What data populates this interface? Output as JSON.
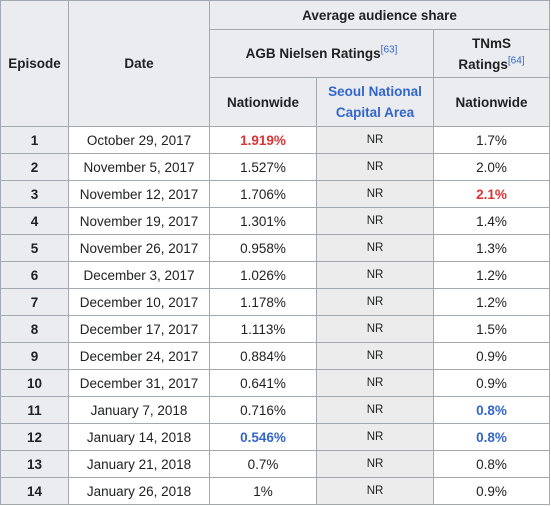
{
  "headers": {
    "episode": "Episode",
    "date": "Date",
    "average_share": "Average audience share",
    "agb": "AGB Nielsen Ratings",
    "agb_ref": "[63]",
    "tnms": "TNmS Ratings",
    "tnms_ref": "[64]",
    "nationwide_agb": "Nationwide",
    "seoul": "Seoul National Capital Area",
    "nationwide_tnms": "Nationwide"
  },
  "rows": [
    {
      "episode": "1",
      "date": "October 29, 2017",
      "agb_nationwide": "1.919%",
      "seoul": "NR",
      "tnms": "1.7%"
    },
    {
      "episode": "2",
      "date": "November 5, 2017",
      "agb_nationwide": "1.527%",
      "seoul": "NR",
      "tnms": "2.0%"
    },
    {
      "episode": "3",
      "date": "November 12, 2017",
      "agb_nationwide": "1.706%",
      "seoul": "NR",
      "tnms": "2.1%"
    },
    {
      "episode": "4",
      "date": "November 19, 2017",
      "agb_nationwide": "1.301%",
      "seoul": "NR",
      "tnms": "1.4%"
    },
    {
      "episode": "5",
      "date": "November 26, 2017",
      "agb_nationwide": "0.958%",
      "seoul": "NR",
      "tnms": "1.3%"
    },
    {
      "episode": "6",
      "date": "December 3, 2017",
      "agb_nationwide": "1.026%",
      "seoul": "NR",
      "tnms": "1.2%"
    },
    {
      "episode": "7",
      "date": "December 10, 2017",
      "agb_nationwide": "1.178%",
      "seoul": "NR",
      "tnms": "1.2%"
    },
    {
      "episode": "8",
      "date": "December 17, 2017",
      "agb_nationwide": "1.113%",
      "seoul": "NR",
      "tnms": "1.5%"
    },
    {
      "episode": "9",
      "date": "December 24, 2017",
      "agb_nationwide": "0.884%",
      "seoul": "NR",
      "tnms": "0.9%"
    },
    {
      "episode": "10",
      "date": "December 31, 2017",
      "agb_nationwide": "0.641%",
      "seoul": "NR",
      "tnms": "0.9%"
    },
    {
      "episode": "11",
      "date": "January 7, 2018",
      "agb_nationwide": "0.716%",
      "seoul": "NR",
      "tnms": "0.8%"
    },
    {
      "episode": "12",
      "date": "January 14, 2018",
      "agb_nationwide": "0.546%",
      "seoul": "NR",
      "tnms": "0.8%"
    },
    {
      "episode": "13",
      "date": "January 21, 2018",
      "agb_nationwide": "0.7%",
      "seoul": "NR",
      "tnms": "0.8%"
    },
    {
      "episode": "14",
      "date": "January 26, 2018",
      "agb_nationwide": "1%",
      "seoul": "NR",
      "tnms": "0.9%"
    }
  ],
  "highlights": {
    "highest_color": "#dd3333",
    "lowest_color": "#3366cc"
  }
}
